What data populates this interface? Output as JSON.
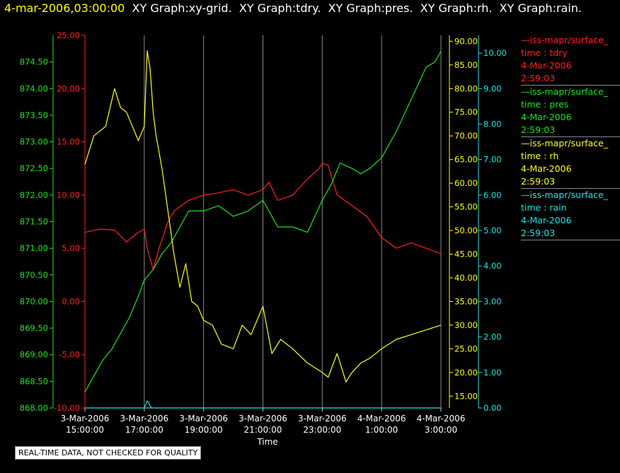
{
  "header": {
    "timestamp": "4-mar-2006,03:00:00",
    "titles": [
      "XY Graph:xy-grid.",
      "XY Graph:tdry.",
      "XY Graph:pres.",
      "XY Graph:rh.",
      "XY Graph:rain."
    ]
  },
  "legend": [
    {
      "line1": "—iss-mapr/surface_",
      "line2": "time : tdry",
      "line3": "4-Mar-2006",
      "line4": "2:59:03",
      "color": "#ff2020"
    },
    {
      "line1": "—iss-mapr/surface_",
      "line2": "time : pres",
      "line3": "4-Mar-2006",
      "line4": "2:59:03",
      "color": "#20e020"
    },
    {
      "line1": "—iss-mapr/surface_",
      "line2": "time : rh",
      "line3": "4-Mar-2006",
      "line4": "2:59:03",
      "color": "#ffff20"
    },
    {
      "line1": "—iss-mapr/surface_",
      "line2": "time : rain",
      "line3": "4-Mar-2006",
      "line4": "2:59:03",
      "color": "#20e0e0"
    }
  ],
  "notice": "REAL-TIME DATA, NOT CHECKED FOR QUALITY",
  "chart_data": {
    "type": "line",
    "xlabel": "Time",
    "x_ticks": [
      {
        "l1": "3-Mar-2006",
        "l2": "15:00:00",
        "h": 0
      },
      {
        "l1": "3-Mar-2006",
        "l2": "17:00:00",
        "h": 2
      },
      {
        "l1": "3-Mar-2006",
        "l2": "19:00:00",
        "h": 4
      },
      {
        "l1": "3-Mar-2006",
        "l2": "21:00:00",
        "h": 6
      },
      {
        "l1": "3-Mar-2006",
        "l2": "23:00:00",
        "h": 8
      },
      {
        "l1": "4-Mar-2006",
        "l2": "1:00:00",
        "h": 10
      },
      {
        "l1": "4-Mar-2006",
        "l2": "3:00:00",
        "h": 12
      }
    ],
    "grid": true,
    "axes": [
      {
        "id": "pres",
        "color": "#20e020",
        "min": 868.0,
        "max": 875.0,
        "ticks": [
          "868.00",
          "868.50",
          "869.00",
          "869.50",
          "870.00",
          "870.50",
          "871.00",
          "871.50",
          "872.00",
          "872.50",
          "873.00",
          "873.50",
          "874.00",
          "874.50"
        ]
      },
      {
        "id": "tdry",
        "color": "#ff2020",
        "min": -10.0,
        "max": 25.0,
        "ticks": [
          "-10.00",
          "-5.00",
          "0.00",
          "5.00",
          "10.00",
          "15.00",
          "20.00",
          "25.00"
        ]
      },
      {
        "id": "rh",
        "color": "#ffff20",
        "min": 12.5,
        "max": 91.25,
        "ticks": [
          "15.00",
          "20.00",
          "25.00",
          "30.00",
          "35.00",
          "40.00",
          "45.00",
          "50.00",
          "55.00",
          "60.00",
          "65.00",
          "70.00",
          "75.00",
          "80.00",
          "85.00",
          "90.00"
        ]
      },
      {
        "id": "rain",
        "color": "#20e0e0",
        "min": 0.0,
        "max": 10.5,
        "ticks": [
          "0.00",
          "1.00",
          "2.00",
          "3.00",
          "4.00",
          "5.00",
          "6.00",
          "7.00",
          "8.00",
          "9.00",
          "10.00"
        ]
      }
    ],
    "series": [
      {
        "name": "tdry",
        "axis": "tdry",
        "color": "#ff2020",
        "x": [
          0,
          0.5,
          1,
          1.4,
          1.8,
          2,
          2.1,
          2.3,
          2.5,
          2.8,
          3,
          3.5,
          4,
          4.5,
          5,
          5.5,
          6,
          6.2,
          6.5,
          7,
          7.5,
          7.9,
          8,
          8.2,
          8.5,
          9,
          9.5,
          10,
          10.5,
          11,
          11.5,
          12
        ],
        "y": [
          6.5,
          6.8,
          6.7,
          5.6,
          6.5,
          6.8,
          5.0,
          3.0,
          5.0,
          7.5,
          8.5,
          9.5,
          10.0,
          10.2,
          10.5,
          10.0,
          10.5,
          11.2,
          9.5,
          10.0,
          11.5,
          12.5,
          13.0,
          12.8,
          10.0,
          9.0,
          8.0,
          6.0,
          5.0,
          5.5,
          5.0,
          4.5
        ]
      },
      {
        "name": "pres",
        "axis": "pres",
        "color": "#20e020",
        "x": [
          0,
          0.3,
          0.6,
          0.9,
          1.2,
          1.5,
          1.8,
          2,
          2.3,
          2.6,
          2.9,
          3.2,
          3.5,
          4,
          4.5,
          5,
          5.5,
          6,
          6.5,
          7,
          7.5,
          8,
          8.3,
          8.6,
          9,
          9.3,
          9.6,
          10,
          10.5,
          11,
          11.5,
          11.8,
          12
        ],
        "y": [
          868.3,
          868.6,
          868.9,
          869.1,
          869.4,
          869.7,
          870.1,
          870.4,
          870.6,
          870.9,
          871.1,
          871.4,
          871.7,
          871.7,
          871.8,
          871.6,
          871.7,
          871.9,
          871.4,
          871.4,
          871.3,
          871.9,
          872.2,
          872.6,
          872.5,
          872.4,
          872.5,
          872.7,
          873.2,
          873.8,
          874.4,
          874.5,
          874.7
        ]
      },
      {
        "name": "rh",
        "axis": "rh",
        "color": "#ffff20",
        "x": [
          0,
          0.3,
          0.7,
          1,
          1.2,
          1.4,
          1.6,
          1.8,
          2,
          2.1,
          2.2,
          2.3,
          2.4,
          2.6,
          2.8,
          3,
          3.2,
          3.4,
          3.6,
          3.8,
          4,
          4.3,
          4.6,
          5,
          5.3,
          5.6,
          6,
          6.3,
          6.6,
          7,
          7.5,
          8,
          8.2,
          8.5,
          8.8,
          9,
          9.3,
          9.6,
          10,
          10.5,
          11,
          11.5,
          12
        ],
        "y": [
          64,
          70,
          72,
          80,
          76,
          75,
          72,
          69,
          72,
          88,
          84,
          75,
          70,
          63,
          54,
          45,
          38,
          43,
          35,
          34,
          31,
          30,
          26,
          25,
          30,
          28,
          34,
          24,
          27,
          25,
          22,
          20,
          19,
          24,
          18,
          20,
          22,
          23,
          25,
          27,
          28,
          29,
          30
        ]
      },
      {
        "name": "rain",
        "axis": "rain",
        "color": "#20e0e0",
        "x": [
          0,
          2,
          2.05,
          2.1,
          2.15,
          2.2,
          2.25,
          2.3,
          12
        ],
        "y": [
          0,
          0,
          0.1,
          0.2,
          0.15,
          0.05,
          0,
          0,
          0
        ]
      }
    ]
  }
}
